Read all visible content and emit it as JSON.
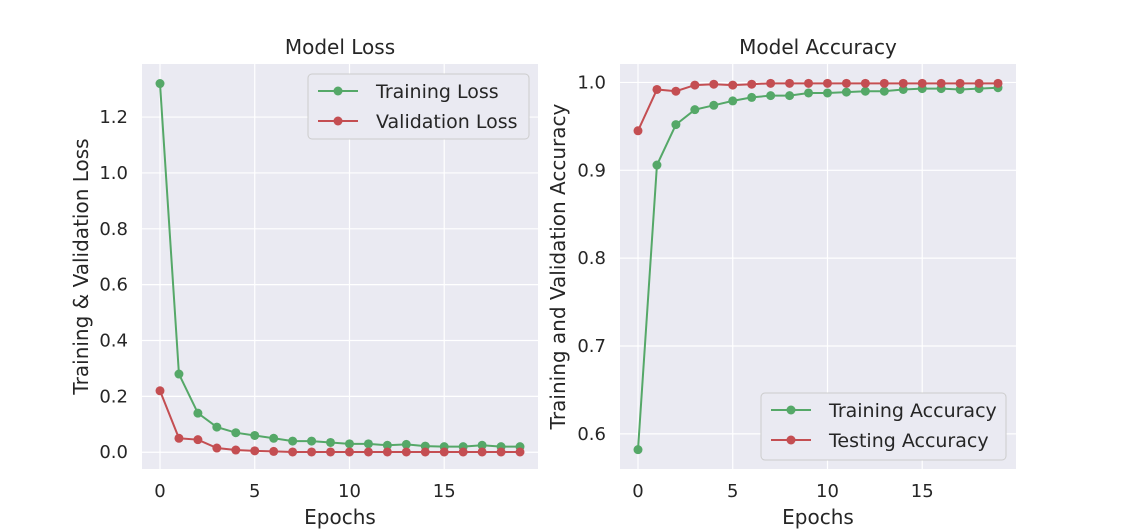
{
  "chart_data": [
    {
      "type": "line",
      "title": "Model Loss",
      "xlabel": "Epochs",
      "ylabel": "Training & Validation Loss",
      "xlim": [
        -0.95,
        19.95
      ],
      "ylim": [
        -0.06,
        1.39
      ],
      "xticks": [
        0,
        5,
        10,
        15
      ],
      "yticks": [
        0.0,
        0.2,
        0.4,
        0.6,
        0.8,
        1.0,
        1.2
      ],
      "ytick_decimals": 1,
      "grid": true,
      "legend_position": "top-right",
      "x": [
        0,
        1,
        2,
        3,
        4,
        5,
        6,
        7,
        8,
        9,
        10,
        11,
        12,
        13,
        14,
        15,
        16,
        17,
        18,
        19
      ],
      "series": [
        {
          "name": "Training Loss",
          "color": "#55a868",
          "values": [
            1.32,
            0.28,
            0.14,
            0.09,
            0.07,
            0.06,
            0.05,
            0.04,
            0.04,
            0.035,
            0.03,
            0.03,
            0.025,
            0.028,
            0.022,
            0.02,
            0.02,
            0.025,
            0.02,
            0.02
          ]
        },
        {
          "name": "Validation Loss",
          "color": "#c44e52",
          "values": [
            0.22,
            0.05,
            0.045,
            0.015,
            0.008,
            0.005,
            0.003,
            0.001,
            0.001,
            0.001,
            0.001,
            0.001,
            0.001,
            0.001,
            0.001,
            0.001,
            0.001,
            0.001,
            0.001,
            0.001
          ]
        }
      ]
    },
    {
      "type": "line",
      "title": "Model Accuracy",
      "xlabel": "Epochs",
      "ylabel": "Training and Validation Accuracy",
      "xlim": [
        -0.95,
        19.95
      ],
      "ylim": [
        0.56,
        1.021
      ],
      "xticks": [
        0,
        5,
        10,
        15
      ],
      "yticks": [
        0.6,
        0.7,
        0.8,
        0.9,
        1.0
      ],
      "ytick_decimals": 1,
      "grid": true,
      "legend_position": "bottom-right",
      "x": [
        0,
        1,
        2,
        3,
        4,
        5,
        6,
        7,
        8,
        9,
        10,
        11,
        12,
        13,
        14,
        15,
        16,
        17,
        18,
        19
      ],
      "series": [
        {
          "name": "Training Accuracy",
          "color": "#55a868",
          "values": [
            0.582,
            0.906,
            0.952,
            0.969,
            0.974,
            0.979,
            0.983,
            0.985,
            0.985,
            0.988,
            0.988,
            0.989,
            0.99,
            0.99,
            0.992,
            0.993,
            0.993,
            0.992,
            0.993,
            0.994
          ]
        },
        {
          "name": "Testing Accuracy",
          "color": "#c44e52",
          "values": [
            0.945,
            0.992,
            0.99,
            0.997,
            0.998,
            0.997,
            0.998,
            0.999,
            0.999,
            0.999,
            0.999,
            0.999,
            0.999,
            0.999,
            0.999,
            0.999,
            0.999,
            0.999,
            0.999,
            0.999
          ]
        }
      ]
    }
  ]
}
